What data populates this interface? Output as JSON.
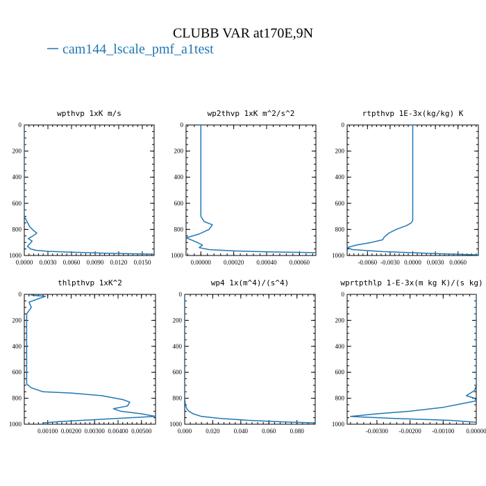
{
  "figure": {
    "title": "CLUBB VAR at170E,9N",
    "legend": {
      "label": "cam144_lscale_pmf_a1test",
      "color": "#1f77b4"
    }
  },
  "chart_data": [
    {
      "type": "line",
      "title": "wpthvp   1xK m/s",
      "xlim": [
        0,
        0.0165
      ],
      "ylim": [
        1000,
        0
      ],
      "xticks": [
        0,
        0.003,
        0.006,
        0.009,
        0.012,
        0.015
      ],
      "xtick_labels": [
        "0.0000",
        "0.0030",
        "0.0060",
        "0.0090",
        "0.0120",
        "0.0150"
      ],
      "yticks": [
        0,
        200,
        400,
        600,
        800,
        1000
      ],
      "ytick_labels": [
        "0",
        "200",
        "400",
        "600",
        "800",
        "1000"
      ],
      "series": [
        {
          "x": [
            0,
            0,
            0.0003,
            0.0007,
            0.0012,
            0.0016,
            0.0011,
            0.0005,
            0.001,
            0.0007,
            0.0004,
            0.0008,
            0.0015,
            0.003,
            0.006,
            0.01,
            0.0165
          ],
          "y": [
            0,
            700,
            735,
            780,
            810,
            828,
            850,
            870,
            890,
            910,
            930,
            950,
            960,
            968,
            975,
            982,
            990
          ]
        }
      ]
    },
    {
      "type": "line",
      "title": "wp2thvp   1xK m^2/s^2",
      "xlim": [
        -9e-05,
        0.0007
      ],
      "ylim": [
        1000,
        0
      ],
      "xticks": [
        0,
        0.0002,
        0.0004,
        0.0006
      ],
      "xtick_labels": [
        "0.00000",
        "0.00020",
        "0.00040",
        "0.00060"
      ],
      "yticks": [
        0,
        200,
        400,
        600,
        800,
        1000
      ],
      "ytick_labels": [
        "0",
        "200",
        "400",
        "600",
        "800",
        "1000"
      ],
      "series": [
        {
          "x": [
            0,
            0,
            2e-05,
            7e-05,
            5e-05,
            -1e-05,
            -9e-05,
            -3e-05,
            1e-05,
            -1e-05,
            5e-05,
            0.0002,
            0.0004,
            0.0007
          ],
          "y": [
            0,
            700,
            740,
            765,
            800,
            835,
            865,
            895,
            920,
            940,
            955,
            965,
            972,
            978
          ]
        }
      ]
    },
    {
      "type": "line",
      "title": "rtpthvp   1E-3x(kg/kg) K",
      "xlim": [
        -0.0087,
        0.0087
      ],
      "ylim": [
        1000,
        0
      ],
      "xticks": [
        -0.006,
        -0.003,
        0,
        0.003,
        0.006
      ],
      "xtick_labels": [
        "-0.0060",
        "-0.0030",
        "0.0000",
        "0.0030",
        "0.0060"
      ],
      "yticks": [
        0,
        200,
        400,
        600,
        800,
        1000
      ],
      "ytick_labels": [
        "0",
        "200",
        "400",
        "600",
        "800",
        "1000"
      ],
      "series": [
        {
          "x": [
            0,
            0,
            -0.0002,
            -0.0008,
            -0.0022,
            -0.0032,
            -0.0038,
            -0.004,
            -0.0055,
            -0.0075,
            -0.0087,
            -0.008,
            -0.004,
            0.003,
            0.0087
          ],
          "y": [
            0,
            730,
            750,
            770,
            800,
            830,
            860,
            880,
            900,
            920,
            940,
            955,
            970,
            985,
            995
          ]
        }
      ]
    },
    {
      "type": "line",
      "title": "thlpthvp   1xK^2",
      "xlim": [
        0,
        0.0056
      ],
      "ylim": [
        1000,
        0
      ],
      "xticks": [
        0.001,
        0.002,
        0.003,
        0.004,
        0.005
      ],
      "xtick_labels": [
        "0.00100",
        "0.00200",
        "0.00300",
        "0.00400",
        "0.00500"
      ],
      "yticks": [
        0,
        200,
        400,
        600,
        800,
        1000
      ],
      "ytick_labels": [
        "0",
        "200",
        "400",
        "600",
        "800",
        "1000"
      ],
      "series": [
        {
          "x": [
            0.0002,
            0.0004,
            0.0009,
            0.0005,
            0.0002,
            0.0003,
            0.0001,
            0.0001,
            0.0003,
            0.0008,
            0.002,
            0.0033,
            0.0042,
            0.0045,
            0.0044,
            0.0038,
            0.0041,
            0.005,
            0.0056,
            0.0035,
            0.0015,
            0.0008
          ],
          "y": [
            0,
            8,
            15,
            40,
            60,
            100,
            150,
            690,
            720,
            750,
            760,
            780,
            810,
            830,
            860,
            880,
            900,
            920,
            940,
            960,
            980,
            990
          ]
        }
      ]
    },
    {
      "type": "line",
      "title": "wp4   1x(m^4)/(s^4)",
      "xlim": [
        0,
        0.093
      ],
      "ylim": [
        1000,
        0
      ],
      "xticks": [
        0,
        0.02,
        0.04,
        0.06,
        0.08
      ],
      "xtick_labels": [
        "0.000",
        "0.020",
        "0.040",
        "0.060",
        "0.080"
      ],
      "yticks": [
        0,
        200,
        400,
        600,
        800,
        1000
      ],
      "ytick_labels": [
        "0",
        "200",
        "400",
        "600",
        "800",
        "1000"
      ],
      "series": [
        {
          "x": [
            0,
            0,
            0.0005,
            0.0015,
            0.003,
            0.006,
            0.012,
            0.025,
            0.045,
            0.07,
            0.093
          ],
          "y": [
            0,
            800,
            850,
            880,
            900,
            920,
            940,
            955,
            970,
            982,
            990
          ]
        }
      ]
    },
    {
      "type": "line",
      "title": "wprtpthlp   1-E-3x(m kg K)/(s kg)",
      "xlim": [
        -0.0039,
        0
      ],
      "ylim": [
        1000,
        0
      ],
      "xticks": [
        -0.003,
        -0.002,
        -0.001,
        0
      ],
      "xtick_labels": [
        "-0.00300",
        "-0.00200",
        "-0.00100",
        "0.00000"
      ],
      "yticks": [
        0,
        200,
        400,
        600,
        800,
        1000
      ],
      "ytick_labels": [
        "0",
        "200",
        "400",
        "600",
        "800",
        "1000"
      ],
      "series": [
        {
          "x": [
            0,
            0,
            -5e-05,
            -0.0003,
            -5e-05,
            0,
            -0.0004,
            -0.001,
            -0.002,
            -0.003,
            -0.0038,
            -0.0025,
            -0.0008,
            0
          ],
          "y": [
            0,
            700,
            740,
            780,
            800,
            820,
            840,
            870,
            900,
            920,
            940,
            955,
            970,
            985
          ]
        }
      ]
    }
  ]
}
